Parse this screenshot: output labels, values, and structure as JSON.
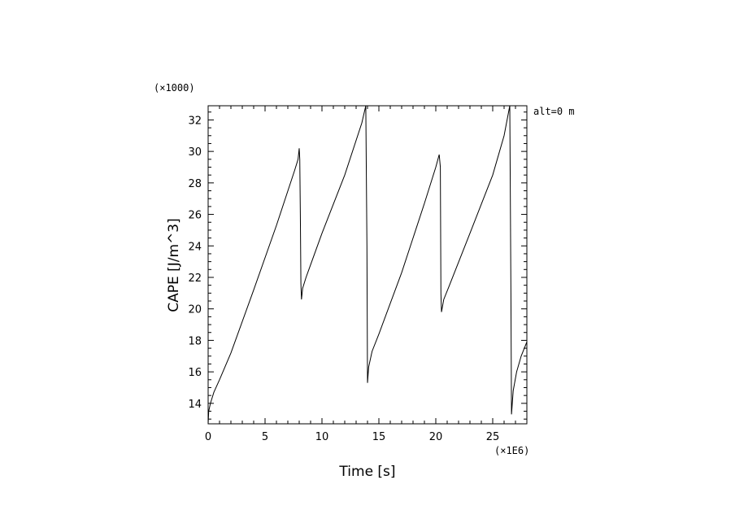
{
  "chart_data": {
    "type": "line",
    "xlabel": "Time [s]",
    "ylabel": "CAPE [J/m^3]",
    "x_multiplier_label": "(×1E6)",
    "y_multiplier_label": "(×1000)",
    "annotation": "alt=0 m",
    "xlim": [
      0,
      28
    ],
    "ylim": [
      12.7,
      32.9
    ],
    "x_ticks": [
      0,
      5,
      10,
      15,
      20,
      25
    ],
    "y_ticks": [
      14,
      16,
      18,
      20,
      22,
      24,
      26,
      28,
      30,
      32
    ],
    "grid": false,
    "series": [
      {
        "points": [
          [
            0.0,
            12.7
          ],
          [
            0.05,
            13.5
          ],
          [
            0.2,
            14.0
          ],
          [
            0.5,
            14.7
          ],
          [
            1.0,
            15.5
          ],
          [
            2.0,
            17.2
          ],
          [
            4.0,
            21.2
          ],
          [
            6.0,
            25.3
          ],
          [
            7.6,
            28.8
          ],
          [
            7.9,
            29.5
          ],
          [
            8.0,
            30.2
          ],
          [
            8.05,
            29.5
          ],
          [
            8.1,
            26.0
          ],
          [
            8.15,
            21.6
          ],
          [
            8.2,
            20.6
          ],
          [
            8.3,
            21.3
          ],
          [
            8.6,
            22.0
          ],
          [
            10.0,
            24.8
          ],
          [
            12.0,
            28.5
          ],
          [
            13.5,
            31.8
          ],
          [
            13.85,
            32.9
          ],
          [
            13.95,
            24.0
          ],
          [
            14.0,
            15.3
          ],
          [
            14.1,
            16.3
          ],
          [
            14.4,
            17.3
          ],
          [
            15.0,
            18.4
          ],
          [
            17.0,
            22.3
          ],
          [
            19.0,
            26.7
          ],
          [
            20.0,
            29.0
          ],
          [
            20.3,
            29.8
          ],
          [
            20.4,
            29.0
          ],
          [
            20.45,
            21.0
          ],
          [
            20.5,
            19.8
          ],
          [
            20.7,
            20.6
          ],
          [
            21.2,
            21.5
          ],
          [
            23.0,
            24.8
          ],
          [
            25.0,
            28.5
          ],
          [
            26.0,
            31.0
          ],
          [
            26.5,
            32.9
          ],
          [
            26.6,
            21.0
          ],
          [
            26.65,
            13.3
          ],
          [
            26.8,
            14.8
          ],
          [
            27.1,
            16.0
          ],
          [
            27.5,
            17.0
          ],
          [
            28.0,
            17.9
          ]
        ]
      }
    ]
  }
}
